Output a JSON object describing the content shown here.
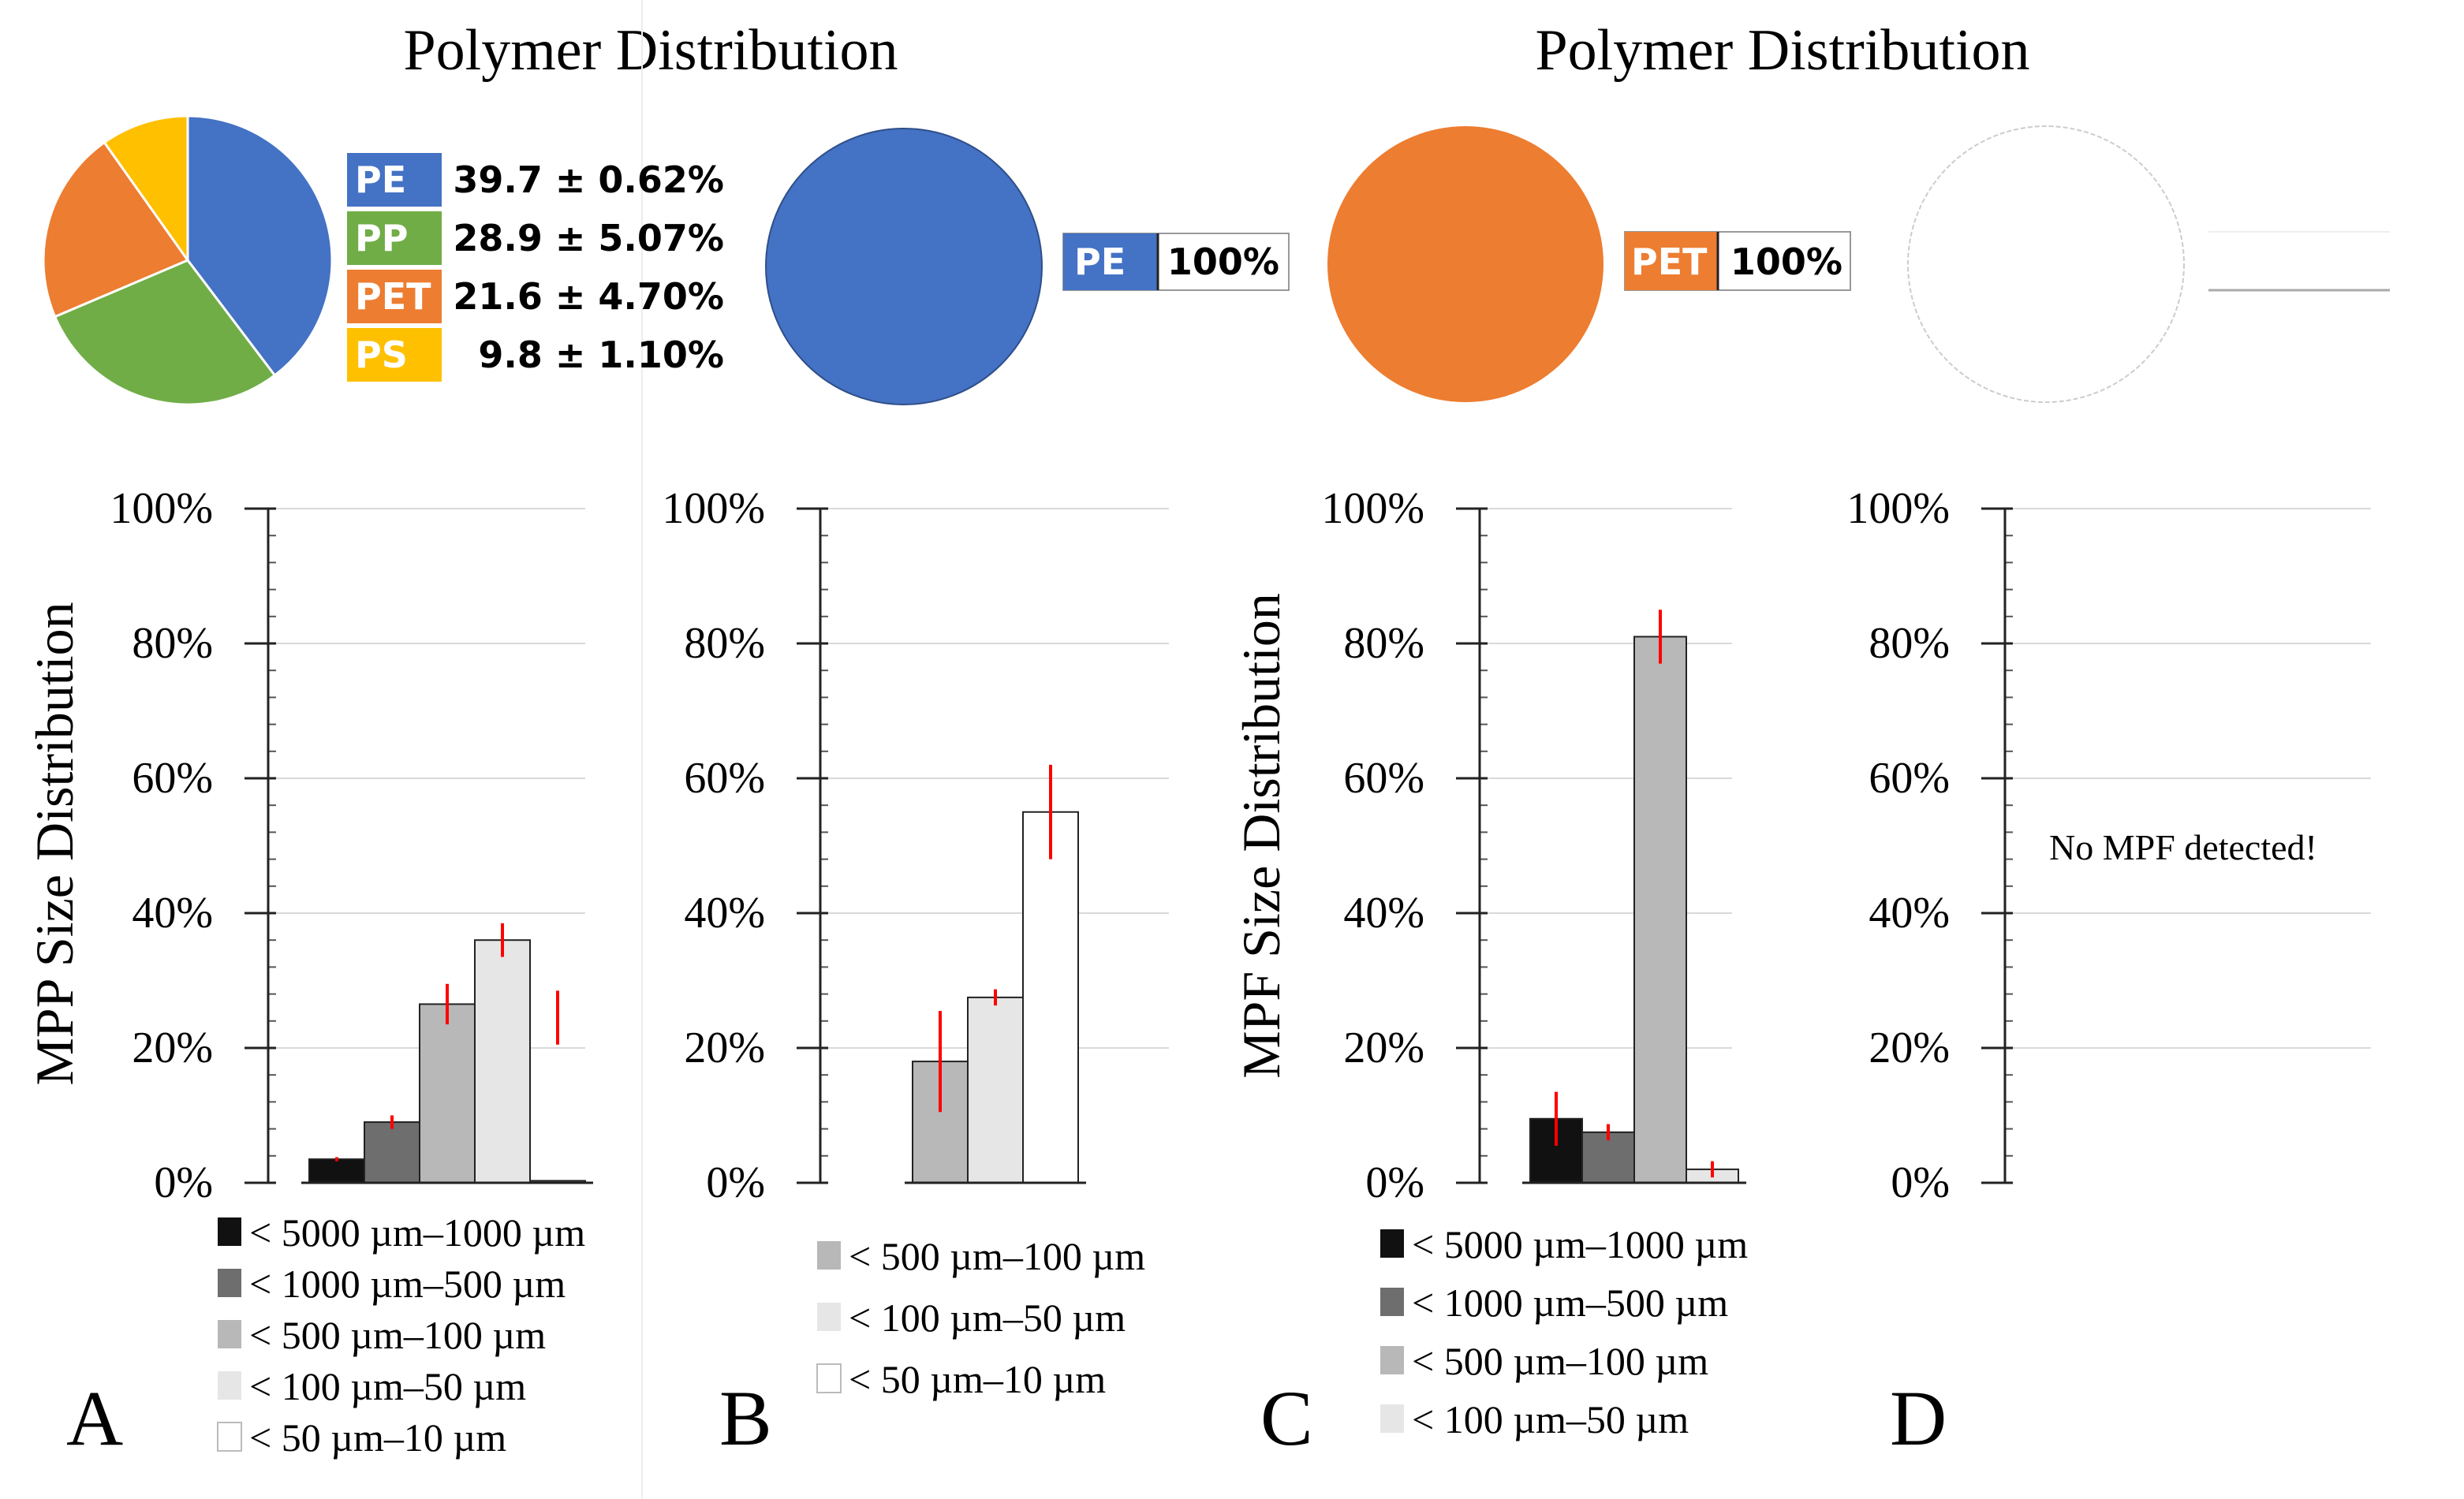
{
  "titles": {
    "left": "Polymer Distribution",
    "right": "Polymer Distribution"
  },
  "chart_data": [
    {
      "id": "pie-A",
      "type": "pie",
      "panel": "A",
      "title": "Polymer Distribution",
      "slices": [
        {
          "label": "PE",
          "value": 39.7,
          "text": "39.7 ± 0.62%",
          "color": "#4472C4"
        },
        {
          "label": "PP",
          "value": 28.9,
          "text": "28.9 ± 5.07%",
          "color": "#70AD47"
        },
        {
          "label": "PET",
          "value": 21.6,
          "text": "21.6 ± 4.70%",
          "color": "#ED7D31"
        },
        {
          "label": "PS",
          "value": 9.8,
          "text": "9.8 ± 1.10%",
          "color": "#FFC000"
        }
      ]
    },
    {
      "id": "pie-B",
      "type": "pie",
      "panel": "B",
      "slices": [
        {
          "label": "PE",
          "value": 100,
          "text": "100%",
          "color": "#4472C4"
        }
      ]
    },
    {
      "id": "pie-C",
      "type": "pie",
      "panel": "C",
      "title": "Polymer Distribution",
      "slices": [
        {
          "label": "PET",
          "value": 100,
          "text": "100%",
          "color": "#ED7D31"
        }
      ]
    },
    {
      "id": "pie-D",
      "type": "pie",
      "panel": "D",
      "slices": []
    },
    {
      "id": "bar-A",
      "type": "bar",
      "panel": "A",
      "panel_label": "A",
      "ylabel": "MPP Size Distribution",
      "ylim": [
        0,
        100
      ],
      "yticks": [
        "0%",
        "20%",
        "40%",
        "60%",
        "80%",
        "100%"
      ],
      "categories": [
        "< 5000 µm–1000 µm",
        "< 1000 µm–500 µm",
        "< 500 µm–100 µm",
        "< 100 µm–50 µm",
        "< 50 µm–10 µm"
      ],
      "values": [
        3.5,
        9,
        26.5,
        36,
        0.3
      ],
      "errors": [
        0.3,
        1,
        3,
        2.5,
        4
      ],
      "colors": [
        "#111111",
        "#6e6e6e",
        "#b8b8b8",
        "#e6e6e6",
        "#ffffff"
      ],
      "error_centers": [
        null,
        null,
        null,
        null,
        24.5
      ]
    },
    {
      "id": "bar-B",
      "type": "bar",
      "panel": "B",
      "panel_label": "B",
      "ylabel": "",
      "ylim": [
        0,
        100
      ],
      "yticks": [
        "0%",
        "20%",
        "40%",
        "60%",
        "80%",
        "100%"
      ],
      "categories": [
        "< 500 µm–100 µm",
        "< 100 µm–50 µm",
        "< 50 µm–10 µm"
      ],
      "values": [
        18,
        27.5,
        55
      ],
      "errors": [
        7.5,
        1.2,
        7
      ],
      "colors": [
        "#b8b8b8",
        "#e6e6e6",
        "#ffffff"
      ],
      "error_centers": [
        null,
        null,
        null
      ]
    },
    {
      "id": "bar-C",
      "type": "bar",
      "panel": "C",
      "panel_label": "C",
      "ylabel": "MPF Size Distribution",
      "ylim": [
        0,
        100
      ],
      "yticks": [
        "0%",
        "20%",
        "40%",
        "60%",
        "80%",
        "100%"
      ],
      "categories": [
        "< 5000 µm–1000 µm",
        "< 1000 µm–500 µm",
        "< 500 µm–100 µm",
        "< 100 µm–50 µm"
      ],
      "values": [
        9.5,
        7.5,
        81,
        2
      ],
      "errors": [
        4,
        1.2,
        4,
        1.2
      ],
      "colors": [
        "#111111",
        "#6e6e6e",
        "#b8b8b8",
        "#e6e6e6"
      ],
      "error_centers": [
        null,
        null,
        null,
        null
      ]
    },
    {
      "id": "bar-D",
      "type": "bar",
      "panel": "D",
      "panel_label": "D",
      "ylabel": "",
      "ylim": [
        0,
        100
      ],
      "yticks": [
        "0%",
        "20%",
        "40%",
        "60%",
        "80%",
        "100%"
      ],
      "categories": [],
      "values": [],
      "errors": [],
      "colors": [],
      "error_centers": [],
      "annotation": "No MPF detected!"
    }
  ],
  "colors": {
    "error": "#ff0000",
    "axis": "#222222",
    "grid": "#d9d9d9"
  }
}
